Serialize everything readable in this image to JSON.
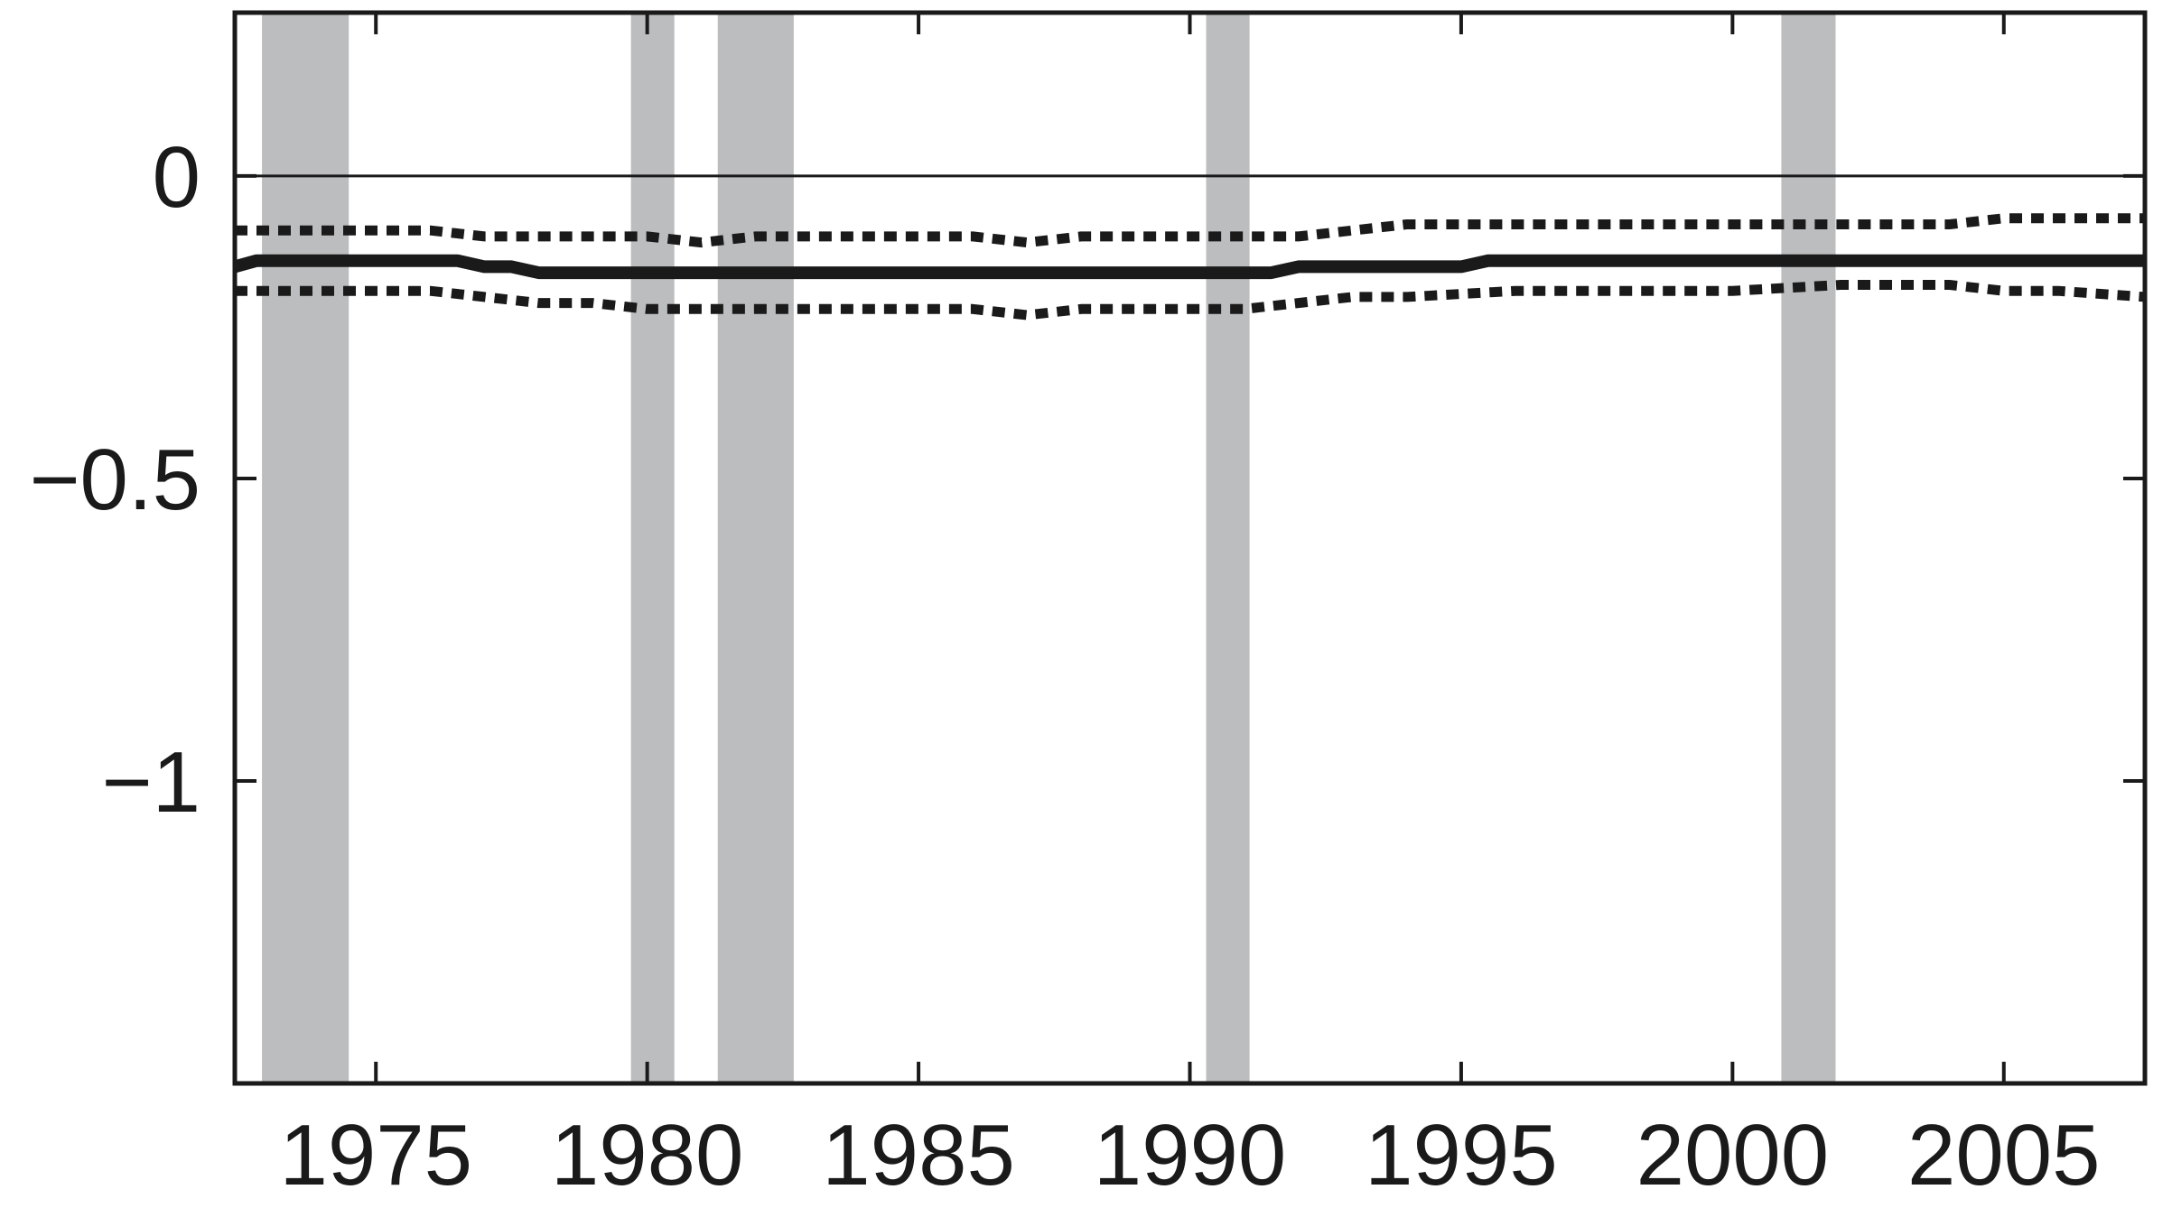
{
  "chart_data": {
    "type": "line",
    "title": "",
    "xlabel": "",
    "ylabel": "",
    "xlim": [
      1972.4,
      2007.6
    ],
    "ylim": [
      -1.5,
      0.27
    ],
    "x_ticks": [
      1975,
      1980,
      1985,
      1990,
      1995,
      2000,
      2005
    ],
    "x_tick_labels": [
      "1975",
      "1980",
      "1985",
      "1990",
      "1995",
      "2000",
      "2005"
    ],
    "y_ticks": [
      0,
      -0.5,
      -1
    ],
    "y_tick_labels": [
      "0",
      "−0.5",
      "−1"
    ],
    "zero_line": 0,
    "shaded_periods": [
      {
        "start": 1972.9,
        "end": 1974.5
      },
      {
        "start": 1979.7,
        "end": 1980.5
      },
      {
        "start": 1981.3,
        "end": 1982.7
      },
      {
        "start": 1990.3,
        "end": 1991.1
      },
      {
        "start": 2000.9,
        "end": 2001.9
      }
    ],
    "series": [
      {
        "style": "solid",
        "x": [
          1972.4,
          1972.8,
          1975.0,
          1976.5,
          1977.0,
          1977.5,
          1978.0,
          1980.0,
          1985.0,
          1990.0,
          1991.0,
          1991.5,
          1992.0,
          1992.5,
          1993.0,
          1995.0,
          1995.5,
          1996.0,
          2000.0,
          2005.0,
          2007.6
        ],
        "y": [
          -0.15,
          -0.14,
          -0.14,
          -0.14,
          -0.15,
          -0.15,
          -0.16,
          -0.16,
          -0.16,
          -0.16,
          -0.16,
          -0.16,
          -0.15,
          -0.15,
          -0.15,
          -0.15,
          -0.14,
          -0.14,
          -0.14,
          -0.14,
          -0.14
        ]
      },
      {
        "style": "dotted",
        "x": [
          1972.4,
          1973.5,
          1976.0,
          1977.0,
          1978.0,
          1980.0,
          1981.0,
          1982.0,
          1983.0,
          1984.0,
          1985.0,
          1986.0,
          1987.0,
          1988.0,
          1990.0,
          1992.0,
          1993.0,
          1994.0,
          1996.0,
          2000.0,
          2002.0,
          2004.0,
          2005.0,
          2007.6
        ],
        "y": [
          -0.09,
          -0.09,
          -0.09,
          -0.1,
          -0.1,
          -0.1,
          -0.11,
          -0.1,
          -0.1,
          -0.1,
          -0.1,
          -0.1,
          -0.11,
          -0.1,
          -0.1,
          -0.1,
          -0.09,
          -0.08,
          -0.08,
          -0.08,
          -0.08,
          -0.08,
          -0.07,
          -0.07
        ]
      },
      {
        "style": "dotted",
        "x": [
          1972.4,
          1973.5,
          1976.0,
          1977.0,
          1978.0,
          1979.0,
          1980.0,
          1982.0,
          1985.0,
          1986.0,
          1987.0,
          1988.0,
          1990.0,
          1991.0,
          1992.0,
          1993.0,
          1994.0,
          1996.0,
          2000.0,
          2002.0,
          2004.0,
          2005.0,
          2006.0,
          2007.6
        ],
        "y": [
          -0.19,
          -0.19,
          -0.19,
          -0.2,
          -0.21,
          -0.21,
          -0.22,
          -0.22,
          -0.22,
          -0.22,
          -0.23,
          -0.22,
          -0.22,
          -0.22,
          -0.21,
          -0.2,
          -0.2,
          -0.19,
          -0.19,
          -0.18,
          -0.18,
          -0.19,
          -0.19,
          -0.2
        ]
      }
    ],
    "colors": {
      "line": "#1a1a1a",
      "shade": "#bcbdbf",
      "axis": "#1a1a1a",
      "background": "#ffffff"
    }
  }
}
